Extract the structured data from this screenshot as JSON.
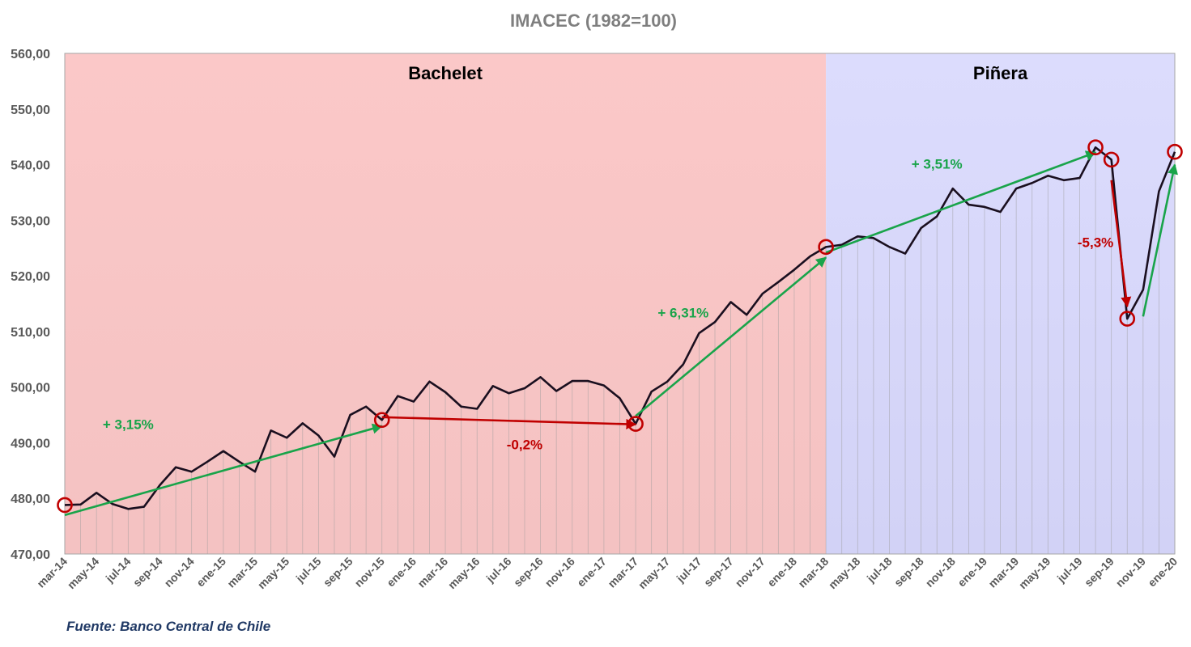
{
  "title": "IMACEC (1982=100)",
  "source": "Fuente: Banco Central de Chile",
  "colors": {
    "line": "#1a0f1f",
    "arrow_up": "#19a44a",
    "arrow_down": "#c00000",
    "marker": "#c00000",
    "region_bachelet": "#f9c5c5",
    "region_pinera": "#d7d7fb",
    "drop_line": "#9a9a9a",
    "axis_text": "#595959"
  },
  "regions": [
    {
      "label": "Bachelet",
      "from": "mar-14",
      "to": "mar-18"
    },
    {
      "label": "Piñera",
      "from": "mar-18",
      "to": "ene-20"
    }
  ],
  "annotations": [
    {
      "text": "+ 3,15%",
      "direction": "up",
      "from": {
        "month": "mar-14",
        "value": 477
      },
      "to": {
        "month": "nov-15",
        "value": 493
      },
      "label_at": {
        "month": "jul-14",
        "value": 492.5
      }
    },
    {
      "text": "-0,2%",
      "direction": "down",
      "from": {
        "month": "nov-15",
        "value": 494.6
      },
      "to": {
        "month": "mar-17",
        "value": 493.3
      },
      "label_at": {
        "month": "ago-16",
        "value": 488.8
      }
    },
    {
      "text": "+ 6,31%",
      "direction": "up",
      "from": {
        "month": "mar-17",
        "value": 494.8
      },
      "to": {
        "month": "mar-18",
        "value": 523.3
      },
      "label_at": {
        "month": "jun-17",
        "value": 512.5
      }
    },
    {
      "text": "+ 3,51%",
      "direction": "up",
      "from": {
        "month": "mar-18",
        "value": 524.2
      },
      "to": {
        "month": "ago-19",
        "value": 542.2
      },
      "label_at": {
        "month": "oct-18",
        "value": 539.3
      }
    },
    {
      "text": "-5,3%",
      "direction": "down",
      "from": {
        "month": "sep-19",
        "value": 537.2
      },
      "to": {
        "month": "oct-19",
        "value": 514.5
      },
      "label_at": {
        "month": "ago-19",
        "value": 525.2
      }
    },
    {
      "text": "",
      "direction": "up",
      "from": {
        "month": "nov-19",
        "value": 512.7
      },
      "to": {
        "month": "ene-20",
        "value": 540
      }
    }
  ],
  "markers": [
    "mar-14",
    "nov-15",
    "mar-17",
    "mar-18",
    "ago-19",
    "sep-19",
    "oct-19",
    "ene-20"
  ],
  "chart_data": {
    "type": "line",
    "title": "IMACEC (1982=100)",
    "xlabel": "",
    "ylabel": "",
    "ylim": [
      470,
      560
    ],
    "yticks": [
      "470,00",
      "480,00",
      "490,00",
      "500,00",
      "510,00",
      "520,00",
      "530,00",
      "540,00",
      "550,00",
      "560,00"
    ],
    "grid": false,
    "x": [
      "mar-14",
      "abr-14",
      "may-14",
      "jun-14",
      "jul-14",
      "ago-14",
      "sep-14",
      "oct-14",
      "nov-14",
      "dic-14",
      "ene-15",
      "feb-15",
      "mar-15",
      "abr-15",
      "may-15",
      "jun-15",
      "jul-15",
      "ago-15",
      "sep-15",
      "oct-15",
      "nov-15",
      "dic-15",
      "ene-16",
      "feb-16",
      "mar-16",
      "abr-16",
      "may-16",
      "jun-16",
      "jul-16",
      "ago-16",
      "sep-16",
      "oct-16",
      "nov-16",
      "dic-16",
      "ene-17",
      "feb-17",
      "mar-17",
      "abr-17",
      "may-17",
      "jun-17",
      "jul-17",
      "ago-17",
      "sep-17",
      "oct-17",
      "nov-17",
      "dic-17",
      "ene-18",
      "feb-18",
      "mar-18",
      "abr-18",
      "may-18",
      "jun-18",
      "jul-18",
      "ago-18",
      "sep-18",
      "oct-18",
      "nov-18",
      "dic-18",
      "ene-19",
      "feb-19",
      "mar-19",
      "abr-19",
      "may-19",
      "jun-19",
      "jul-19",
      "ago-19",
      "sep-19",
      "oct-19",
      "nov-19",
      "dic-19",
      "ene-20"
    ],
    "xtick_labels": [
      "mar-14",
      "may-14",
      "jul-14",
      "sep-14",
      "nov-14",
      "ene-15",
      "mar-15",
      "may-15",
      "jul-15",
      "sep-15",
      "nov-15",
      "ene-16",
      "mar-16",
      "may-16",
      "jul-16",
      "sep-16",
      "nov-16",
      "ene-17",
      "mar-17",
      "may-17",
      "jul-17",
      "sep-17",
      "nov-17",
      "ene-18",
      "mar-18",
      "may-18",
      "jul-18",
      "sep-18",
      "nov-18",
      "ene-19",
      "mar-19",
      "may-19",
      "jul-19",
      "sep-19",
      "nov-19",
      "ene-20"
    ],
    "series": [
      {
        "values": [
          478.8,
          478.9,
          481.0,
          479.0,
          478.1,
          478.5,
          482.4,
          485.6,
          484.8,
          486.6,
          488.5,
          486.6,
          484.8,
          492.2,
          490.9,
          493.5,
          491.3,
          487.5,
          495.0,
          496.5,
          494.1,
          498.4,
          497.4,
          501.0,
          499.1,
          496.5,
          496.1,
          500.2,
          498.9,
          499.8,
          501.8,
          499.3,
          501.1,
          501.1,
          500.3,
          498.0,
          493.4,
          499.2,
          501.0,
          504.1,
          509.7,
          511.7,
          515.3,
          513.0,
          516.8,
          518.9,
          521.1,
          523.5,
          525.2,
          525.6,
          527.1,
          526.8,
          525.2,
          524.0,
          528.6,
          530.7,
          535.7,
          532.8,
          532.4,
          531.5,
          535.7,
          536.7,
          538.0,
          537.2,
          537.6,
          543.1,
          540.9,
          512.3,
          517.5,
          535.2,
          542.3
        ]
      }
    ]
  }
}
